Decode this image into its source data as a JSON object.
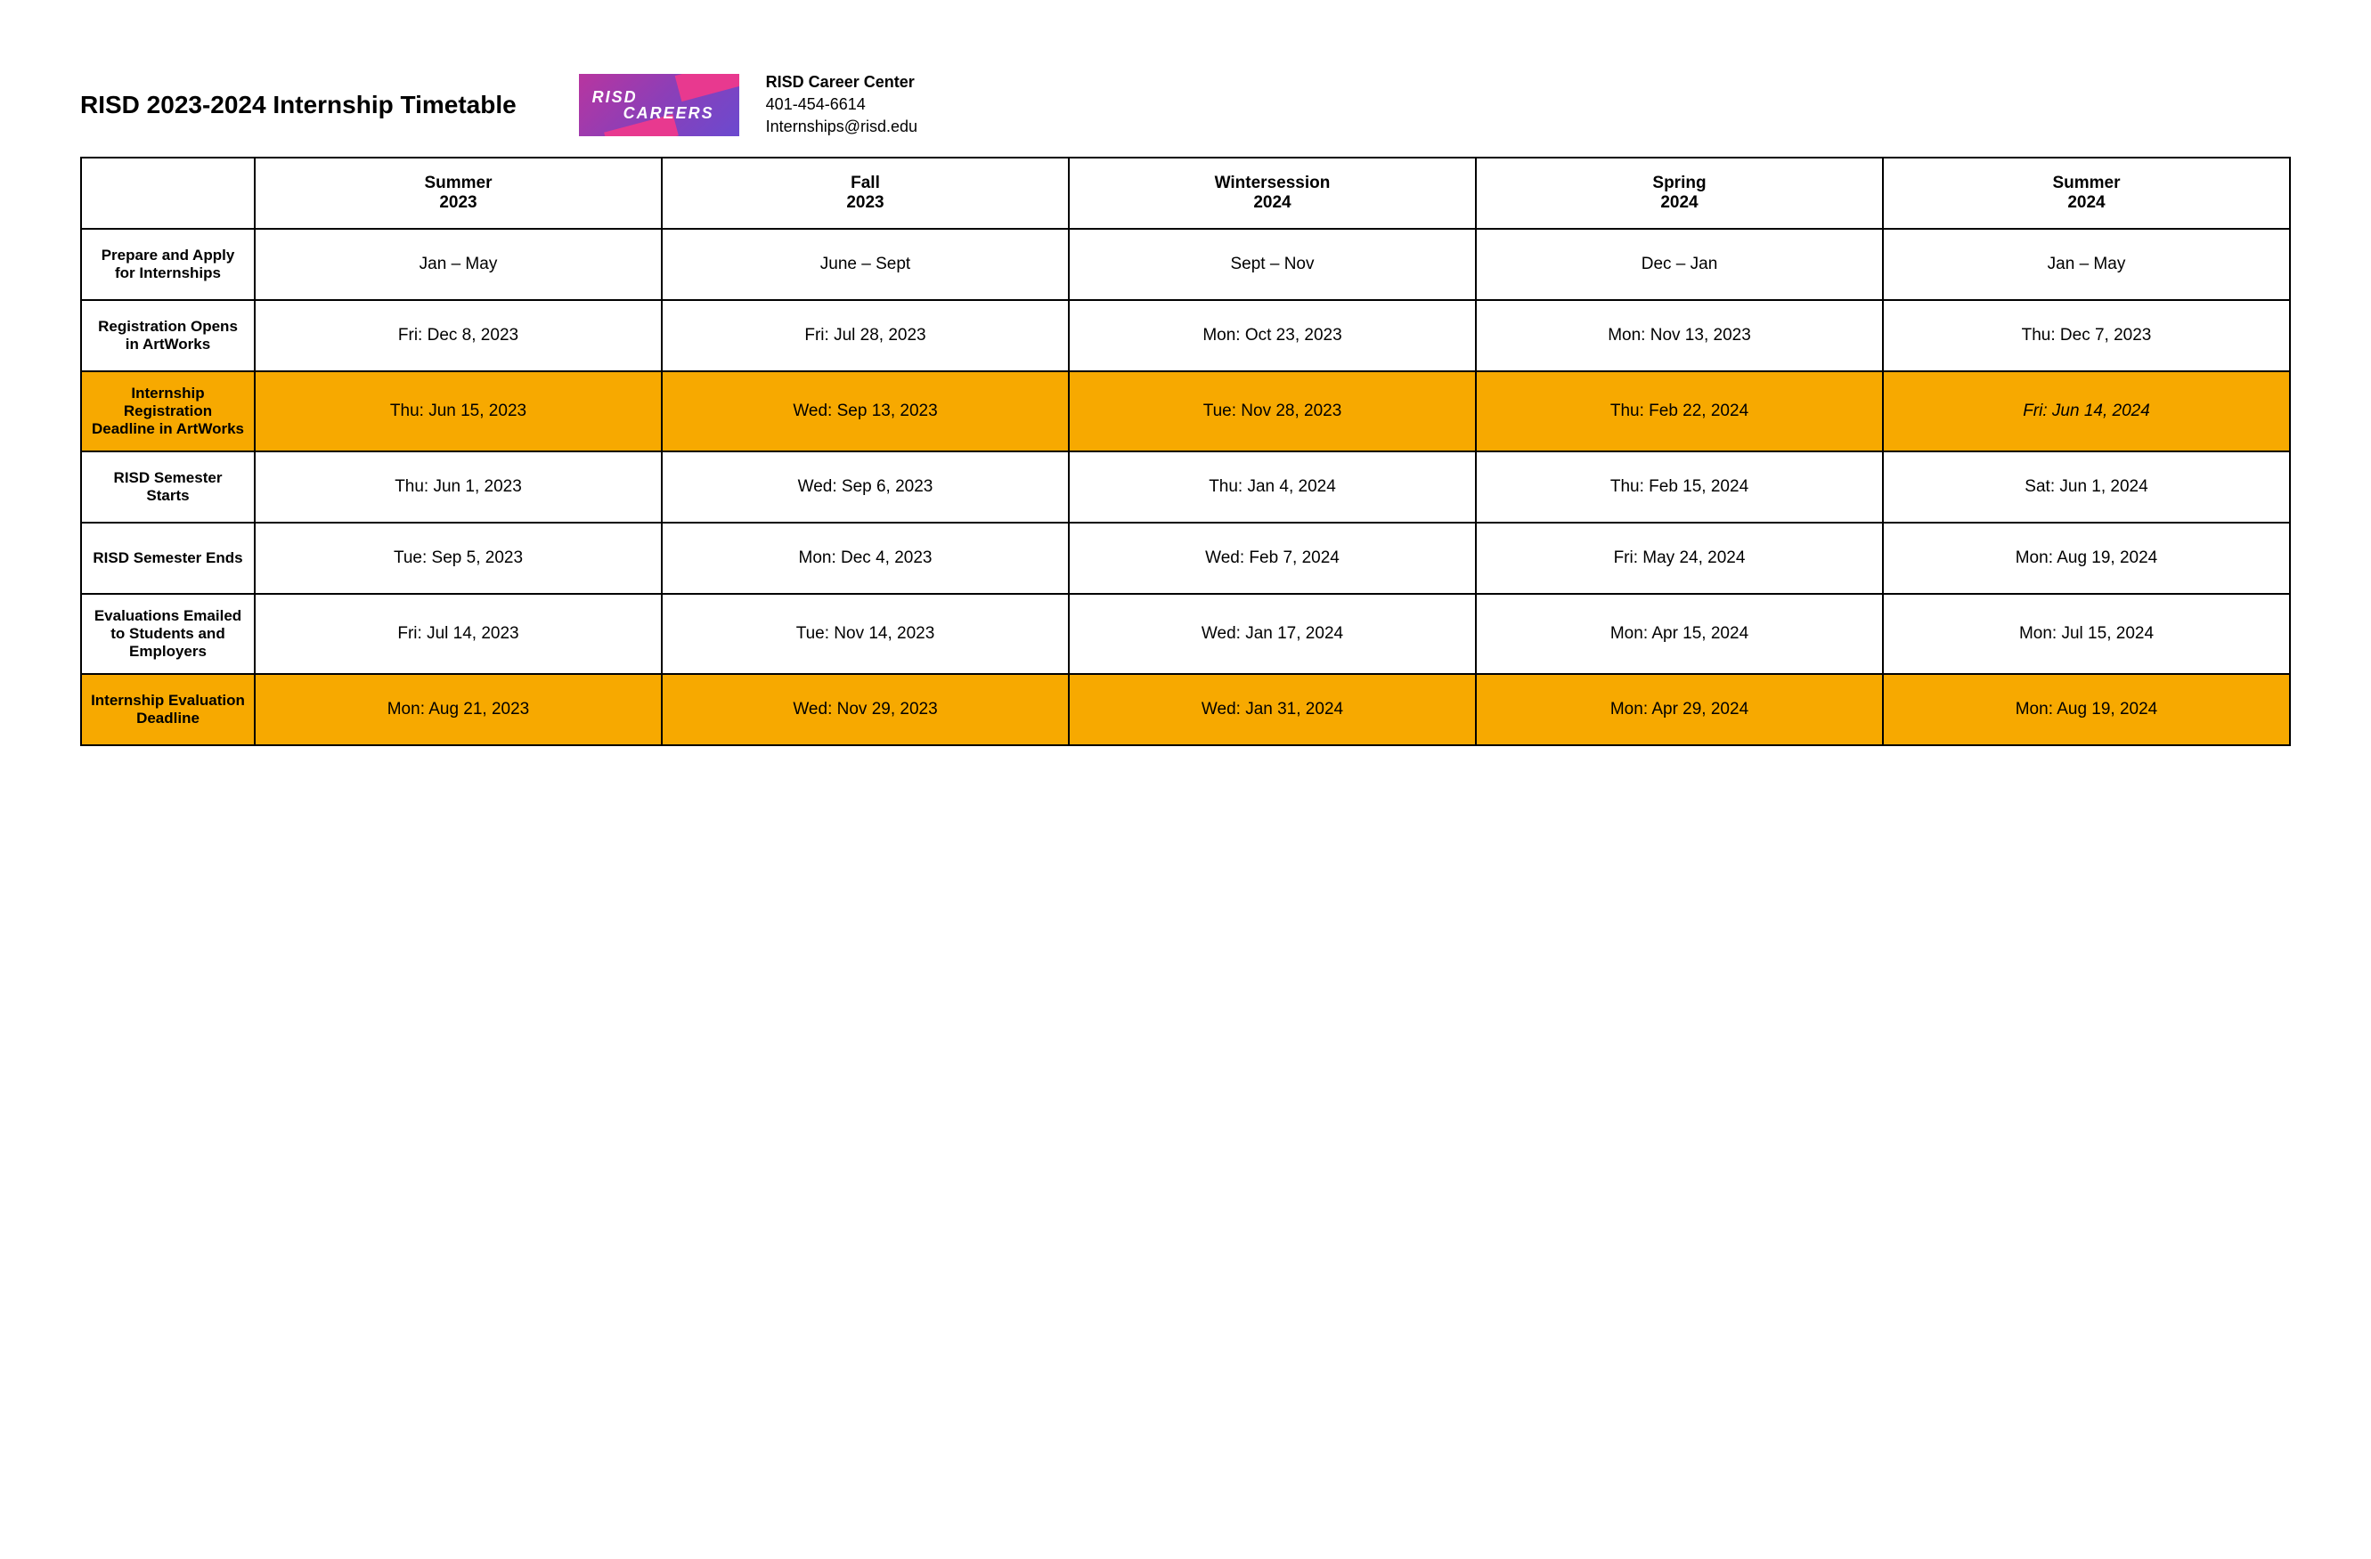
{
  "title": "RISD 2023-2024 Internship Timetable",
  "logo": {
    "line1": "RISD",
    "line2": "CAREERS"
  },
  "contact": {
    "name": "RISD Career Center",
    "phone": "401-454-6614",
    "email": "Internships@risd.edu"
  },
  "colors": {
    "highlight": "#f7a900",
    "border": "#000000",
    "background": "#ffffff",
    "logo_grad_start": "#b8359f",
    "logo_grad_end": "#6b4acf",
    "logo_accent": "#e8398f"
  },
  "table": {
    "columns": [
      {
        "line1": "Summer",
        "line2": "2023"
      },
      {
        "line1": "Fall",
        "line2": "2023"
      },
      {
        "line1": "Wintersession",
        "line2": "2024"
      },
      {
        "line1": "Spring",
        "line2": "2024"
      },
      {
        "line1": "Summer",
        "line2": "2024"
      }
    ],
    "rows": [
      {
        "label": "Prepare and Apply for Internships",
        "cells": [
          "Jan – May",
          "June – Sept",
          "Sept – Nov",
          "Dec – Jan",
          "Jan – May"
        ],
        "highlight": false
      },
      {
        "label": "Registration Opens in ArtWorks",
        "cells": [
          "Fri: Dec 8, 2023",
          "Fri: Jul 28, 2023",
          "Mon: Oct 23, 2023",
          "Mon: Nov 13, 2023",
          "Thu: Dec 7, 2023"
        ],
        "highlight": false
      },
      {
        "label": "Internship Registration Deadline in ArtWorks",
        "cells": [
          "Thu: Jun 15, 2023",
          "Wed: Sep 13, 2023",
          "Tue: Nov 28, 2023",
          "Thu: Feb 22, 2024",
          "Fri: Jun 14, 2024"
        ],
        "highlight": true,
        "italic_last": true
      },
      {
        "label": "RISD Semester Starts",
        "cells": [
          "Thu: Jun 1, 2023",
          "Wed: Sep 6, 2023",
          "Thu: Jan 4, 2024",
          "Thu: Feb 15, 2024",
          "Sat: Jun 1, 2024"
        ],
        "highlight": false
      },
      {
        "label": "RISD Semester Ends",
        "cells": [
          "Tue: Sep 5, 2023",
          "Mon: Dec 4, 2023",
          "Wed: Feb 7, 2024",
          "Fri: May 24, 2024",
          "Mon: Aug 19, 2024"
        ],
        "highlight": false
      },
      {
        "label": "Evaluations Emailed to Students and Employers",
        "cells": [
          "Fri: Jul 14, 2023",
          "Tue: Nov 14, 2023",
          "Wed: Jan 17, 2024",
          "Mon: Apr 15, 2024",
          "Mon: Jul 15, 2024"
        ],
        "highlight": false
      },
      {
        "label": "Internship Evaluation Deadline",
        "cells": [
          "Mon: Aug 21, 2023",
          "Wed: Nov 29, 2023",
          "Wed: Jan 31, 2024",
          "Mon: Apr 29, 2024",
          "Mon: Aug 19, 2024"
        ],
        "highlight": true
      }
    ]
  }
}
